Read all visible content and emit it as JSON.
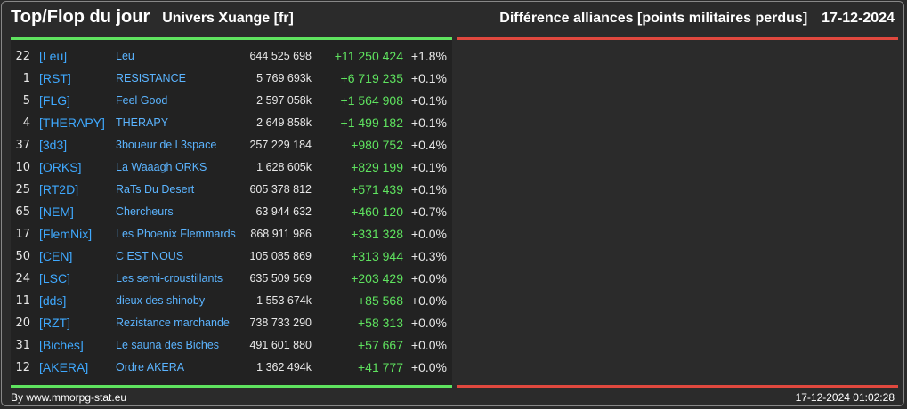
{
  "header": {
    "title": "Top/Flop du jour",
    "universe": "Univers Xuange [fr]",
    "subtitle": "Différence alliances [points militaires perdus]",
    "date": "17-12-2024"
  },
  "colors": {
    "positive": "#5fe35f",
    "negative": "#e0483e",
    "tag": "#3fa9ff",
    "name": "#5bb4ff"
  },
  "top": [
    {
      "rank": "22",
      "tag": "[Leu]",
      "name": "Leu",
      "points": "644 525 698",
      "diff": "+11 250 424",
      "pct": "+1.8%"
    },
    {
      "rank": "1",
      "tag": "[RST]",
      "name": "RESISTANCE",
      "points": "5 769 693k",
      "diff": "+6 719 235",
      "pct": "+0.1%"
    },
    {
      "rank": "5",
      "tag": "[FLG]",
      "name": "Feel Good",
      "points": "2 597 058k",
      "diff": "+1 564 908",
      "pct": "+0.1%"
    },
    {
      "rank": "4",
      "tag": "[THERAPY]",
      "name": "THERAPY",
      "points": "2 649 858k",
      "diff": "+1 499 182",
      "pct": "+0.1%"
    },
    {
      "rank": "37",
      "tag": "[3d3]",
      "name": "3boueur de l 3space",
      "points": "257 229 184",
      "diff": "+980 752",
      "pct": "+0.4%"
    },
    {
      "rank": "10",
      "tag": "[ORKS]",
      "name": "La Waaagh ORKS",
      "points": "1 628 605k",
      "diff": "+829 199",
      "pct": "+0.1%"
    },
    {
      "rank": "25",
      "tag": "[RT2D]",
      "name": "RaTs Du Desert",
      "points": "605 378 812",
      "diff": "+571 439",
      "pct": "+0.1%"
    },
    {
      "rank": "65",
      "tag": "[NEM]",
      "name": "Chercheurs",
      "points": "63 944 632",
      "diff": "+460 120",
      "pct": "+0.7%"
    },
    {
      "rank": "17",
      "tag": "[FlemNix]",
      "name": "Les Phoenix Flemmards",
      "points": "868 911 986",
      "diff": "+331 328",
      "pct": "+0.0%"
    },
    {
      "rank": "50",
      "tag": "[CEN]",
      "name": "C EST NOUS",
      "points": "105 085 869",
      "diff": "+313 944",
      "pct": "+0.3%"
    },
    {
      "rank": "24",
      "tag": "[LSC]",
      "name": "Les semi-croustillants",
      "points": "635 509 569",
      "diff": "+203 429",
      "pct": "+0.0%"
    },
    {
      "rank": "11",
      "tag": "[dds]",
      "name": "dieux des shinoby",
      "points": "1 553 674k",
      "diff": "+85 568",
      "pct": "+0.0%"
    },
    {
      "rank": "20",
      "tag": "[RZT]",
      "name": "Rezistance marchande",
      "points": "738 733 290",
      "diff": "+58 313",
      "pct": "+0.0%"
    },
    {
      "rank": "31",
      "tag": "[Biches]",
      "name": "Le sauna des Biches",
      "points": "491 601 880",
      "diff": "+57 667",
      "pct": "+0.0%"
    },
    {
      "rank": "12",
      "tag": "[AKERA]",
      "name": "Ordre AKERA",
      "points": "1 362 494k",
      "diff": "+41 777",
      "pct": "+0.0%"
    }
  ],
  "footer": {
    "credit": "By www.mmorpg-stat.eu",
    "timestamp": "17-12-2024 01:02:28"
  }
}
